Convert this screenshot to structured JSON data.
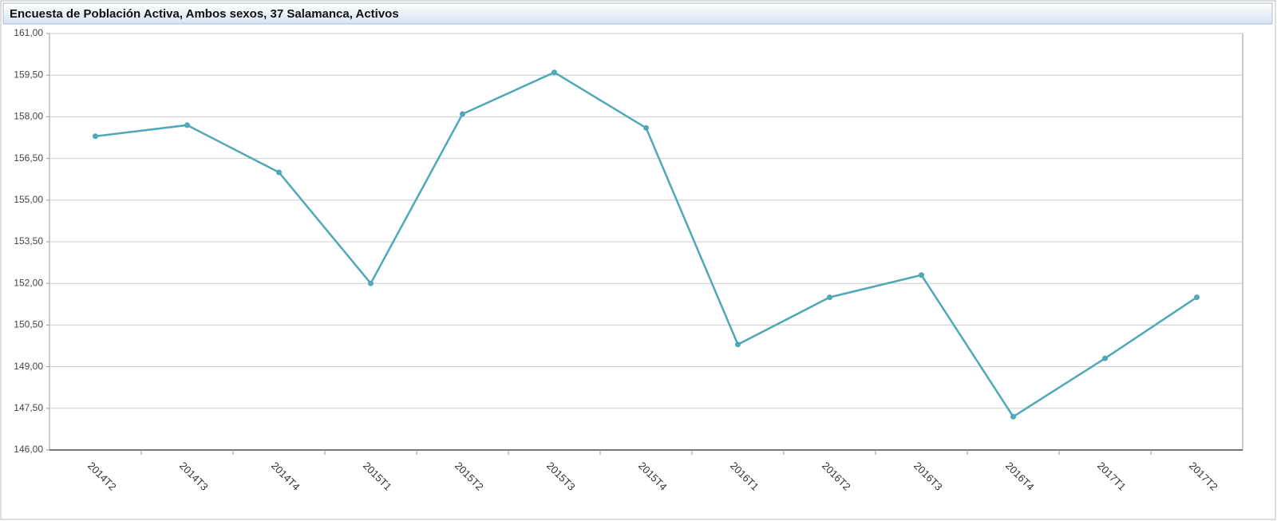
{
  "chart_data": {
    "type": "line",
    "title": "Encuesta de Población Activa, Ambos sexos, 37 Salamanca, Activos",
    "categories": [
      "2014T2",
      "2014T3",
      "2014T4",
      "2015T1",
      "2015T2",
      "2015T3",
      "2015T4",
      "2016T1",
      "2016T2",
      "2016T3",
      "2016T4",
      "2017T1",
      "2017T2"
    ],
    "values": [
      157.3,
      157.7,
      156.0,
      152.0,
      158.1,
      159.6,
      157.6,
      149.8,
      151.5,
      152.3,
      147.2,
      149.3,
      151.5
    ],
    "color": "#4fa8b8",
    "ylim": [
      146,
      161
    ],
    "yticks": [
      {
        "value": 146,
        "label": "146,00"
      },
      {
        "value": 147.5,
        "label": "147,50"
      },
      {
        "value": 149,
        "label": "149,00"
      },
      {
        "value": 150.5,
        "label": "150,50"
      },
      {
        "value": 152,
        "label": "152,00"
      },
      {
        "value": 153.5,
        "label": "153,50"
      },
      {
        "value": 155,
        "label": "155,00"
      },
      {
        "value": 156.5,
        "label": "156,50"
      },
      {
        "value": 158,
        "label": "158,00"
      },
      {
        "value": 159.5,
        "label": "159,50"
      },
      {
        "value": 161,
        "label": "161,00"
      }
    ],
    "grid": true
  }
}
